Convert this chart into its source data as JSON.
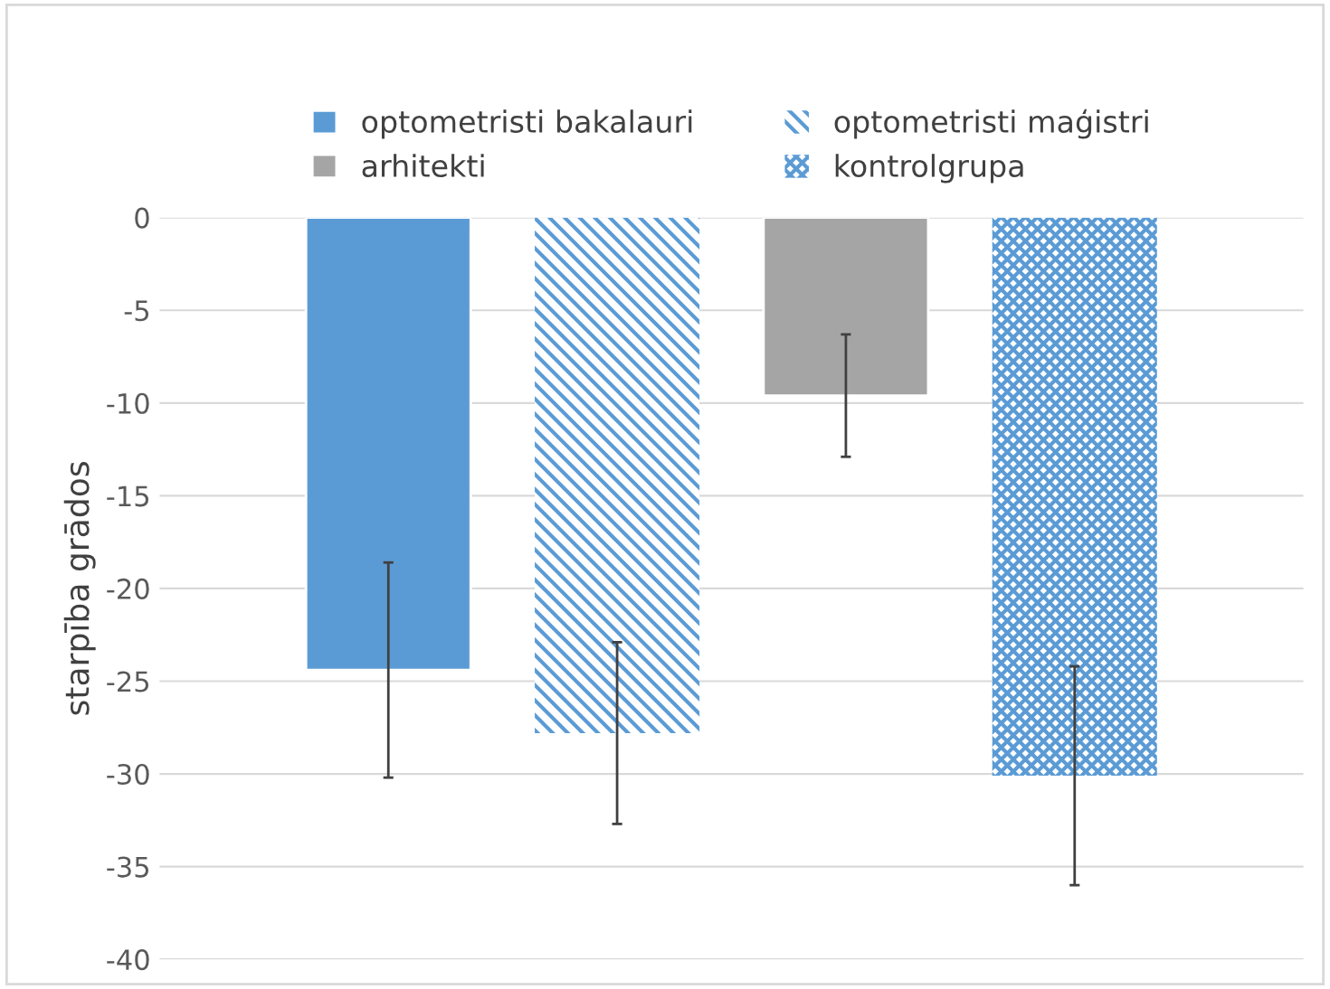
{
  "chart_data": {
    "type": "bar",
    "ylabel": "starpība grādos",
    "categories": [
      null
    ],
    "series": [
      {
        "name": "optometristi bakalauri",
        "color": "#5b9bd5",
        "values": [
          -24.4
        ],
        "errors": [
          5.8
        ]
      },
      {
        "name": "optometristi maģistri",
        "color": "#5b9bd5",
        "values": [
          -27.8
        ],
        "errors": [
          4.9
        ]
      },
      {
        "name": "arhitekti",
        "color": "#a5a5a5",
        "values": [
          -9.6
        ],
        "errors": [
          3.3
        ]
      },
      {
        "name": "kontrolgrupa",
        "color": "#5b9bd5",
        "values": [
          -30.1
        ],
        "errors": [
          5.9
        ]
      }
    ],
    "ylim": [
      -40,
      0
    ],
    "yticks": [
      -40,
      -35,
      -30,
      -25,
      -20,
      -15,
      -10,
      -5,
      0
    ],
    "grid": "y",
    "legend": "top",
    "tick_labels": "y"
  }
}
